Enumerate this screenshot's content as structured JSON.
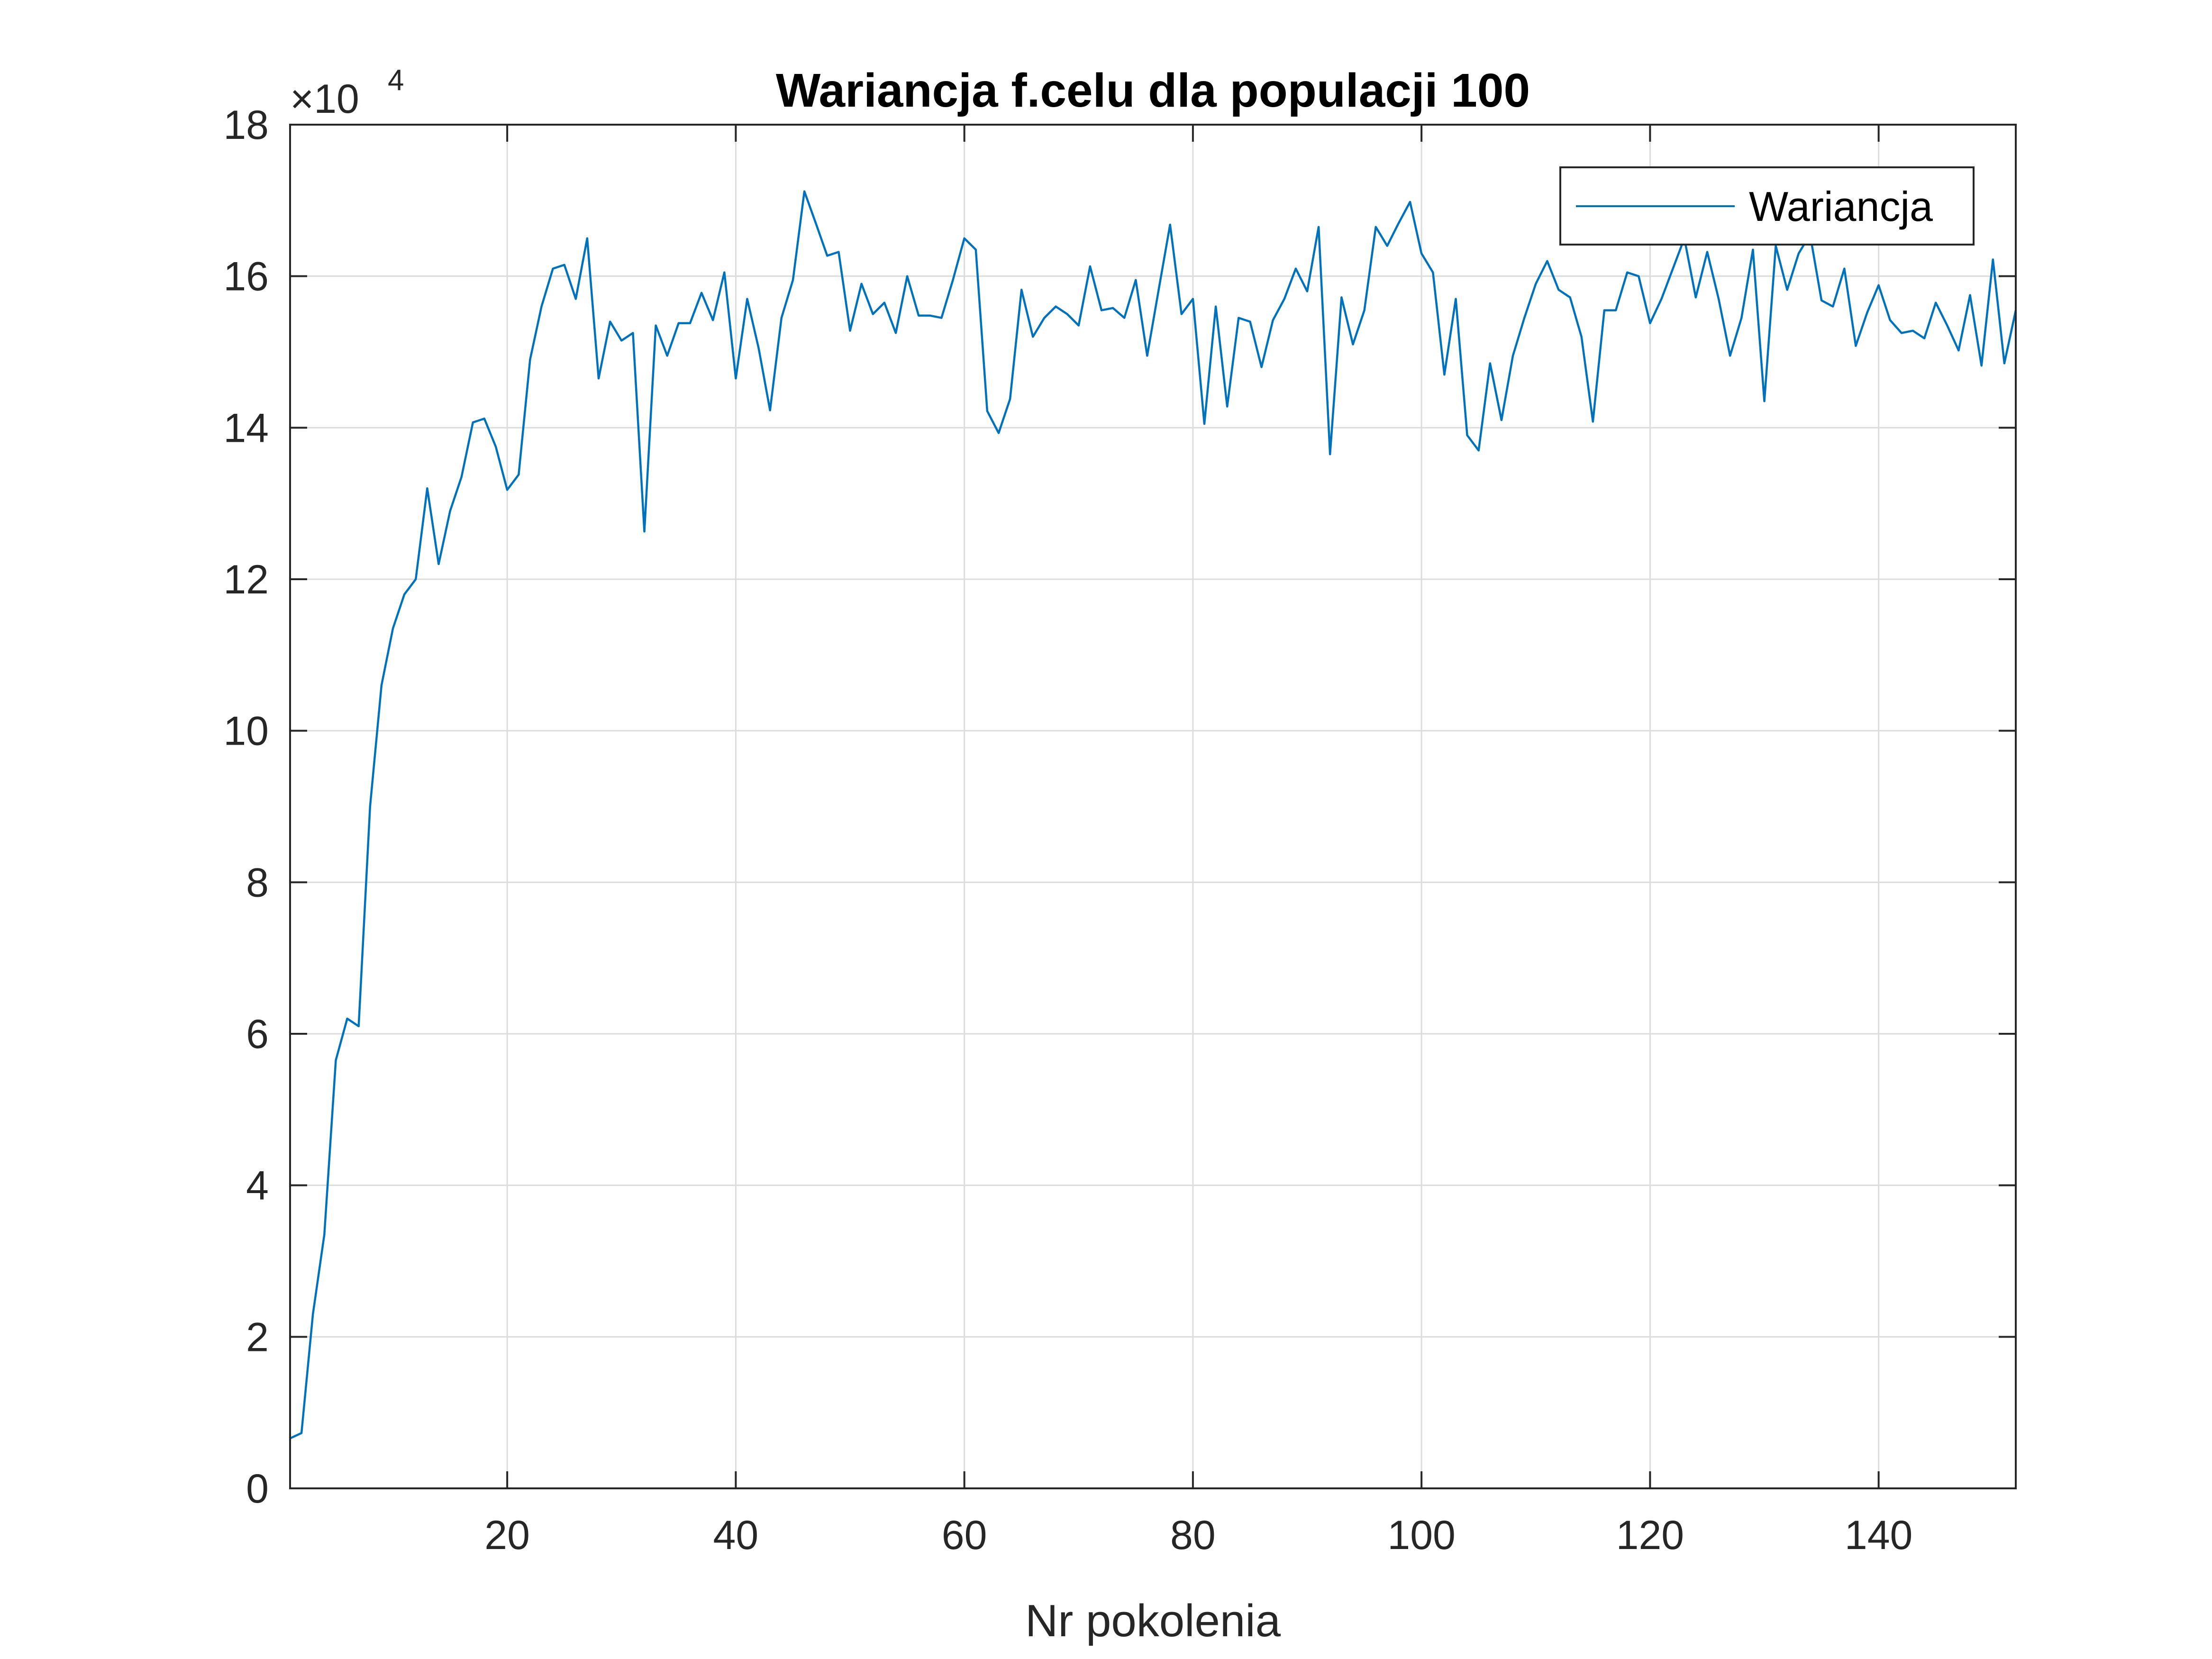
{
  "chart_data": {
    "type": "line",
    "title": "Wariancja f.celu dla populacji 100",
    "xlabel": "Nr pokolenia",
    "ylabel": "",
    "xlim": [
      1,
      152
    ],
    "ylim": [
      0,
      18
    ],
    "xticks": [
      20,
      40,
      60,
      80,
      100,
      120,
      140
    ],
    "yticks": [
      0,
      2,
      4,
      6,
      8,
      10,
      12,
      14,
      16,
      18
    ],
    "y_exponent_label": "×10",
    "y_exponent": "4",
    "grid": true,
    "legend": {
      "position": "top-right",
      "entries": [
        "Wariancja"
      ]
    },
    "colors": {
      "series": "#0072bd",
      "frame": "#262626",
      "grid": "#dcdcdc"
    },
    "series": [
      {
        "name": "Wariancja",
        "x": [
          1,
          2,
          3,
          4,
          5,
          6,
          7,
          8,
          9,
          10,
          11,
          12,
          13,
          14,
          15,
          16,
          17,
          18,
          19,
          20,
          21,
          22,
          23,
          24,
          25,
          26,
          27,
          28,
          29,
          30,
          31,
          32,
          33,
          34,
          35,
          36,
          37,
          38,
          39,
          40,
          41,
          42,
          43,
          44,
          45,
          46,
          47,
          48,
          49,
          50,
          51,
          52,
          53,
          54,
          55,
          56,
          57,
          58,
          59,
          60,
          61,
          62,
          63,
          64,
          65,
          66,
          67,
          68,
          69,
          70,
          71,
          72,
          73,
          74,
          75,
          76,
          77,
          78,
          79,
          80,
          81,
          82,
          83,
          84,
          85,
          86,
          87,
          88,
          89,
          90,
          91,
          92,
          93,
          94,
          95,
          96,
          97,
          98,
          99,
          100,
          101,
          102,
          103,
          104,
          105,
          106,
          107,
          108,
          109,
          110,
          111,
          112,
          113,
          114,
          115,
          116,
          117,
          118,
          119,
          120,
          121,
          122,
          123,
          124,
          125,
          126,
          127,
          128,
          129,
          130,
          131,
          132,
          133,
          134,
          135,
          136,
          137,
          138,
          139,
          140,
          141,
          142,
          143,
          144,
          145,
          146,
          147,
          148,
          149,
          150,
          151,
          152
        ],
        "values": [
          0.66,
          0.73,
          2.3,
          3.35,
          5.65,
          6.2,
          6.1,
          9.0,
          10.6,
          11.35,
          11.8,
          12.0,
          13.2,
          12.2,
          12.9,
          13.35,
          14.07,
          14.12,
          13.75,
          13.18,
          13.38,
          14.9,
          15.6,
          16.1,
          16.15,
          15.7,
          16.5,
          14.65,
          15.4,
          15.15,
          15.25,
          12.63,
          15.35,
          14.95,
          15.38,
          15.38,
          15.78,
          15.42,
          16.05,
          14.65,
          15.7,
          15.05,
          14.23,
          15.45,
          15.95,
          17.12,
          16.7,
          16.27,
          16.32,
          15.28,
          15.9,
          15.5,
          15.65,
          15.25,
          16.0,
          15.48,
          15.48,
          15.45,
          15.95,
          16.5,
          16.35,
          14.22,
          13.93,
          14.38,
          15.82,
          15.2,
          15.45,
          15.6,
          15.5,
          15.35,
          16.13,
          15.55,
          15.58,
          15.45,
          15.95,
          14.95,
          15.82,
          16.68,
          15.5,
          15.7,
          14.05,
          15.6,
          14.28,
          15.45,
          15.4,
          14.8,
          15.42,
          15.7,
          16.1,
          15.8,
          16.65,
          13.65,
          15.72,
          15.1,
          15.55,
          16.65,
          16.4,
          16.7,
          16.98,
          16.3,
          16.05,
          14.7,
          15.7,
          13.9,
          13.7,
          14.85,
          14.1,
          14.95,
          15.45,
          15.9,
          16.2,
          15.82,
          15.72,
          15.2,
          14.08,
          15.55,
          15.55,
          16.05,
          16.0,
          15.38,
          15.7,
          16.1,
          16.5,
          15.72,
          16.32,
          15.7,
          14.95,
          15.45,
          16.35,
          14.35,
          16.4,
          15.82,
          16.3,
          16.55,
          15.68,
          15.6,
          16.1,
          15.08,
          15.52,
          15.88,
          15.42,
          15.25,
          15.28,
          15.18,
          15.65,
          15.35,
          15.02,
          15.75,
          14.82,
          16.22,
          14.85,
          15.55
        ]
      }
    ]
  }
}
